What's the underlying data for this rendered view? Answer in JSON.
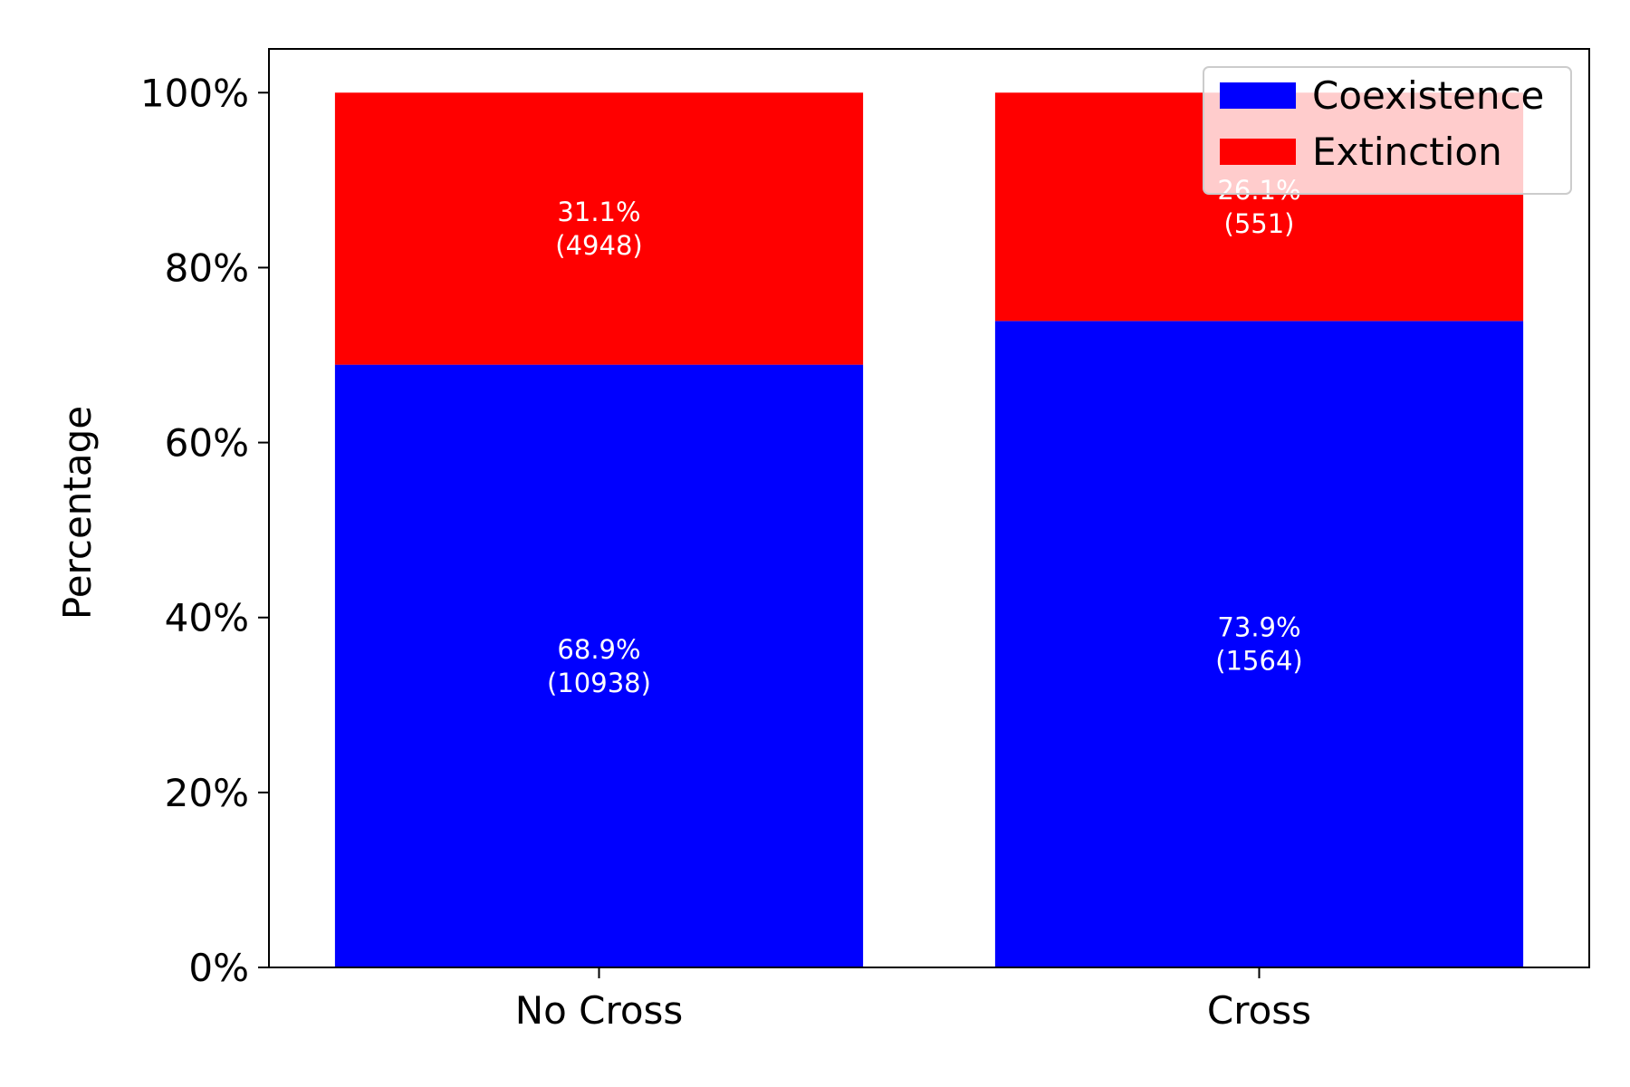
{
  "chart_data": {
    "type": "bar",
    "stacked": true,
    "categories": [
      "No Cross",
      "Cross"
    ],
    "series": [
      {
        "name": "Coexistence",
        "color": "#0000ff",
        "values": [
          68.9,
          73.9
        ],
        "labels": [
          "68.9%\n(10938)",
          "73.9%\n(1564)"
        ]
      },
      {
        "name": "Extinction",
        "color": "#ff0000",
        "values": [
          31.1,
          26.1
        ],
        "labels": [
          "31.1%\n(4948)",
          "26.1%\n(551)"
        ]
      }
    ],
    "ylabel": "Percentage",
    "yticks": [
      "0%",
      "20%",
      "40%",
      "60%",
      "80%",
      "100%"
    ],
    "ytick_values": [
      0,
      20,
      40,
      60,
      80,
      100
    ],
    "ylim": [
      0,
      105
    ],
    "legend": {
      "position": "top-right"
    },
    "grid": false
  }
}
